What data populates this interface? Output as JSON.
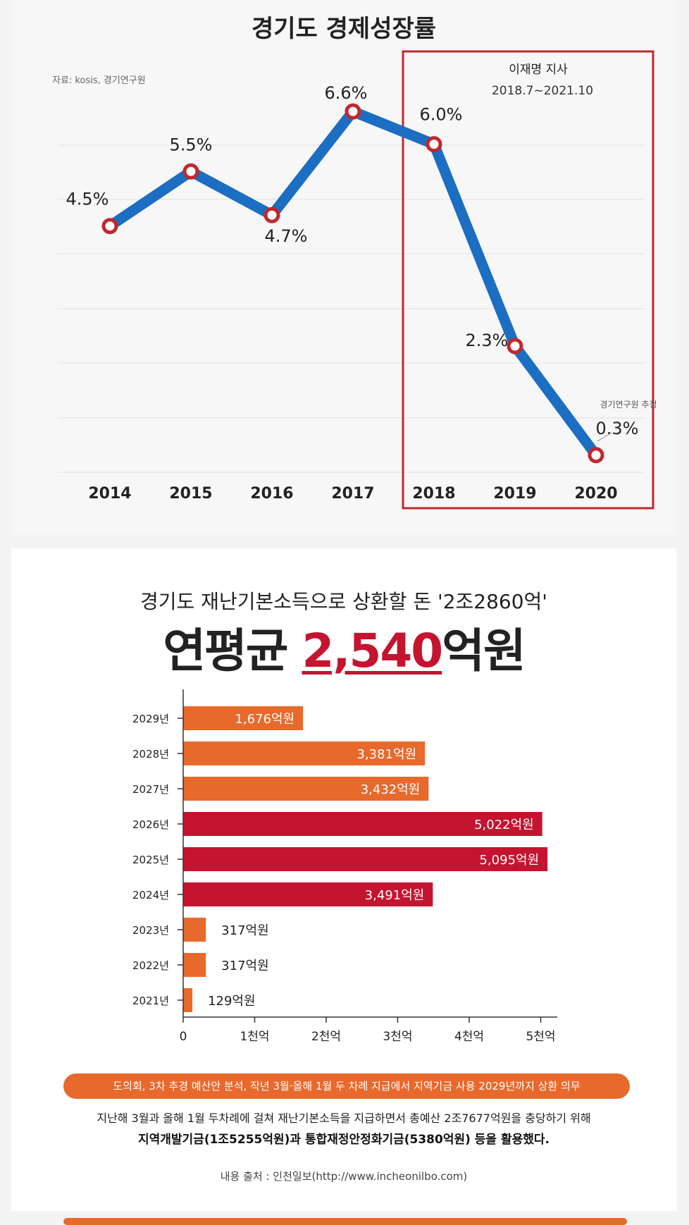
{
  "chart_data": [
    {
      "type": "line",
      "title": "경기도 경제성장률",
      "source": "자료: kosis, 경기연구원",
      "categories": [
        "2014",
        "2015",
        "2016",
        "2017",
        "2018",
        "2019",
        "2020"
      ],
      "values": [
        4.5,
        5.5,
        4.7,
        6.6,
        6.0,
        2.3,
        0.3
      ],
      "value_labels": [
        "4.5%",
        "5.5%",
        "4.7%",
        "6.6%",
        "6.0%",
        "2.3%",
        "0.3%"
      ],
      "highlight_box": {
        "title": "이재명 지사",
        "period": "2018.7~2021.10"
      },
      "annotation": "경기연구원 추정",
      "line_color": "#1b6ec2",
      "box_color": "#c0282d"
    },
    {
      "type": "bar",
      "subtitle": "경기도 재난기본소득으로 상환할 돈 '2조2860억'",
      "headline_prefix": "연평균 ",
      "headline_value": "2,540",
      "headline_suffix": "억원",
      "categories": [
        "2029년",
        "2028년",
        "2027년",
        "2026년",
        "2025년",
        "2024년",
        "2023년",
        "2022년",
        "2021년"
      ],
      "values": [
        1676,
        3381,
        3432,
        5022,
        5095,
        3491,
        317,
        317,
        129
      ],
      "value_labels": [
        "1,676억원",
        "3,381억원",
        "3,432억원",
        "5,022억원",
        "5,095억원",
        "3,491억원",
        "317억원",
        "317억원",
        "129억원"
      ],
      "bar_colors": [
        "#e8692c",
        "#e8692c",
        "#e8692c",
        "#c4142f",
        "#c4142f",
        "#c4142f",
        "#e8692c",
        "#e8692c",
        "#e8692c"
      ],
      "x_ticks": [
        "0",
        "1천억",
        "2천억",
        "3천억",
        "4천억",
        "5천억"
      ],
      "xlim": [
        0,
        5000
      ],
      "note": "도의회, 3차 추경 예산안 분석, 작년 3월·올해 1월 두 차례 지급에서 지역기금 사용 2029년까지 상환 의무",
      "desc_line1": "지난해 3월과 올해 1월 두차례에 걸쳐 재난기본소득을 지급하면서 총예산 2조7677억원을 충당하기 위해",
      "desc_line2": "지역개발기금(1조5255억원)과 통합재정안정화기금(5380억원) 등을 활용했다.",
      "source": "내용 출처 : 인천일보(http://www.incheonilbo.com)"
    }
  ]
}
